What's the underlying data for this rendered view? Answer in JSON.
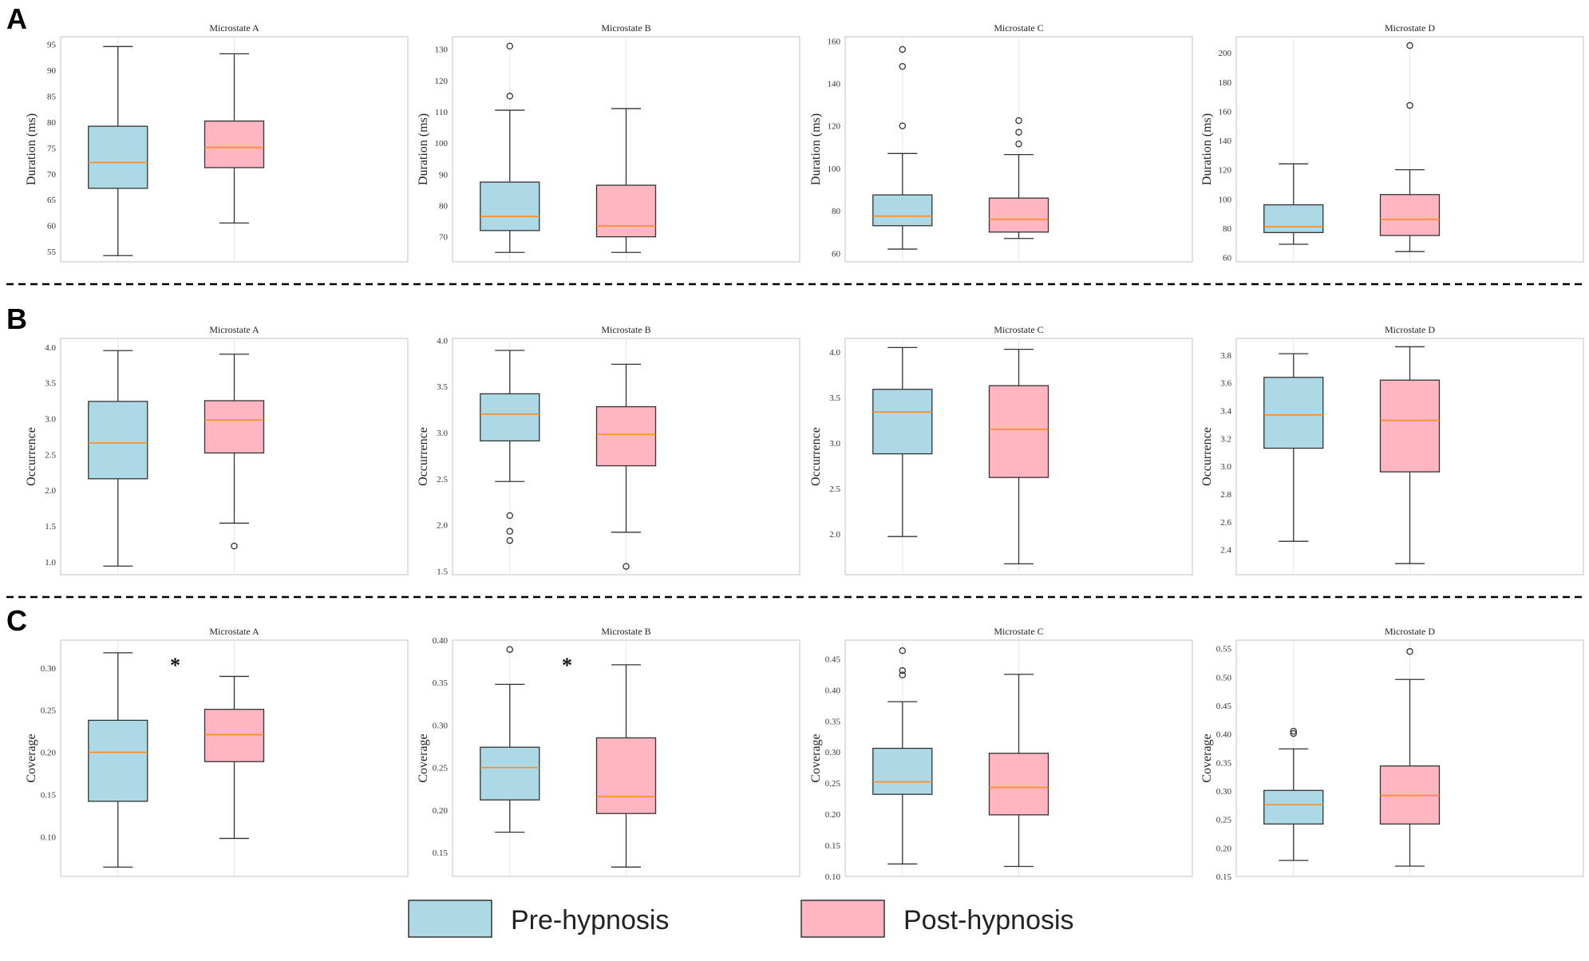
{
  "colors": {
    "pre_fill": "#add8e6",
    "post_fill": "#ffb6c1",
    "median": "#ff8c1a",
    "box_edge": "#333333",
    "frame": "#cccccc",
    "grid": "#e6e6e6",
    "separator": "#000000"
  },
  "legend": {
    "pre_label": "Pre-hypnosis",
    "post_label": "Post-hypnosis"
  },
  "chart_data": [
    {
      "type": "box",
      "row": "A",
      "col": 0,
      "title": "Microstate A",
      "ylabel": "Duration (ms)",
      "ylim": [
        53,
        96.5
      ],
      "yticks": [
        55,
        60,
        65,
        70,
        75,
        80,
        85,
        90,
        95
      ],
      "ytick_labels": [
        "55",
        "60",
        "65",
        "70",
        "75",
        "80",
        "85",
        "90",
        "95"
      ],
      "significance": "",
      "groups": [
        {
          "name": "Pre-hypnosis",
          "whisker_low": 54.2,
          "q1": 67.2,
          "median": 72.2,
          "q3": 79.2,
          "whisker_high": 94.6,
          "outliers": []
        },
        {
          "name": "Post-hypnosis",
          "whisker_low": 60.5,
          "q1": 71.2,
          "median": 75.1,
          "q3": 80.2,
          "whisker_high": 93.2,
          "outliers": []
        }
      ]
    },
    {
      "type": "box",
      "row": "A",
      "col": 1,
      "title": "Microstate B",
      "ylabel": "Duration (ms)",
      "ylim": [
        62,
        134
      ],
      "yticks": [
        70,
        80,
        90,
        100,
        110,
        120,
        130
      ],
      "ytick_labels": [
        "70",
        "80",
        "90",
        "100",
        "110",
        "120",
        "130"
      ],
      "significance": "",
      "groups": [
        {
          "name": "Pre-hypnosis",
          "whisker_low": 65,
          "q1": 72,
          "median": 76.5,
          "q3": 87.5,
          "whisker_high": 110.5,
          "outliers": [
            115,
            131
          ]
        },
        {
          "name": "Post-hypnosis",
          "whisker_low": 65,
          "q1": 70,
          "median": 73.5,
          "q3": 86.5,
          "whisker_high": 111,
          "outliers": []
        }
      ]
    },
    {
      "type": "box",
      "row": "A",
      "col": 2,
      "title": "Microstate C",
      "ylabel": "Duration (ms)",
      "ylim": [
        56,
        162
      ],
      "yticks": [
        60,
        80,
        100,
        120,
        140,
        160
      ],
      "ytick_labels": [
        "60",
        "80",
        "100",
        "120",
        "140",
        "160"
      ],
      "significance": "",
      "groups": [
        {
          "name": "Pre-hypnosis",
          "whisker_low": 62,
          "q1": 73,
          "median": 77.5,
          "q3": 87.5,
          "whisker_high": 107,
          "outliers": [
            120,
            148,
            156
          ]
        },
        {
          "name": "Post-hypnosis",
          "whisker_low": 67,
          "q1": 70,
          "median": 76,
          "q3": 86,
          "whisker_high": 106.5,
          "outliers": [
            111.5,
            117,
            122.5
          ]
        }
      ]
    },
    {
      "type": "box",
      "row": "A",
      "col": 3,
      "title": "Microstate D",
      "ylabel": "Duration (ms)",
      "ylim": [
        57,
        211
      ],
      "yticks": [
        60,
        80,
        100,
        120,
        140,
        160,
        180,
        200
      ],
      "ytick_labels": [
        "60",
        "80",
        "100",
        "120",
        "140",
        "160",
        "180",
        "200"
      ],
      "significance": "",
      "groups": [
        {
          "name": "Pre-hypnosis",
          "whisker_low": 69,
          "q1": 77,
          "median": 81,
          "q3": 96,
          "whisker_high": 124,
          "outliers": []
        },
        {
          "name": "Post-hypnosis",
          "whisker_low": 64,
          "q1": 75,
          "median": 86,
          "q3": 103,
          "whisker_high": 120,
          "outliers": [
            164,
            205
          ]
        }
      ]
    },
    {
      "type": "box",
      "row": "B",
      "col": 0,
      "title": "Microstate A",
      "ylabel": "Occurrence",
      "ylim": [
        0.82,
        4.12
      ],
      "yticks": [
        1.0,
        1.5,
        2.0,
        2.5,
        3.0,
        3.5,
        4.0
      ],
      "ytick_labels": [
        "1.0",
        "1.5",
        "2.0",
        "2.5",
        "3.0",
        "3.5",
        "4.0"
      ],
      "significance": "",
      "groups": [
        {
          "name": "Pre-hypnosis",
          "whisker_low": 0.94,
          "q1": 2.16,
          "median": 2.66,
          "q3": 3.24,
          "whisker_high": 3.95,
          "outliers": []
        },
        {
          "name": "Post-hypnosis",
          "whisker_low": 1.54,
          "q1": 2.52,
          "median": 2.98,
          "q3": 3.25,
          "whisker_high": 3.9,
          "outliers": [
            1.22
          ]
        }
      ]
    },
    {
      "type": "box",
      "row": "B",
      "col": 1,
      "title": "Microstate B",
      "ylabel": "Occurrence",
      "ylim": [
        1.46,
        4.02
      ],
      "yticks": [
        1.5,
        2.0,
        2.5,
        3.0,
        3.5,
        4.0
      ],
      "ytick_labels": [
        "1.5",
        "2.0",
        "2.5",
        "3.0",
        "3.5",
        "4.0"
      ],
      "significance": "",
      "groups": [
        {
          "name": "Pre-hypnosis",
          "whisker_low": 2.47,
          "q1": 2.91,
          "median": 3.2,
          "q3": 3.42,
          "whisker_high": 3.89,
          "outliers": [
            1.83,
            1.93,
            2.1
          ]
        },
        {
          "name": "Post-hypnosis",
          "whisker_low": 1.92,
          "q1": 2.64,
          "median": 2.98,
          "q3": 3.28,
          "whisker_high": 3.74,
          "outliers": [
            1.55
          ]
        }
      ]
    },
    {
      "type": "box",
      "row": "B",
      "col": 2,
      "title": "Microstate C",
      "ylabel": "Occurrence",
      "ylim": [
        1.55,
        4.15
      ],
      "yticks": [
        2.0,
        2.5,
        3.0,
        3.5,
        4.0
      ],
      "ytick_labels": [
        "2.0",
        "2.5",
        "3.0",
        "3.5",
        "4.0"
      ],
      "significance": "",
      "groups": [
        {
          "name": "Pre-hypnosis",
          "whisker_low": 1.97,
          "q1": 2.88,
          "median": 3.34,
          "q3": 3.59,
          "whisker_high": 4.05,
          "outliers": []
        },
        {
          "name": "Post-hypnosis",
          "whisker_low": 1.67,
          "q1": 2.62,
          "median": 3.15,
          "q3": 3.63,
          "whisker_high": 4.03,
          "outliers": []
        }
      ]
    },
    {
      "type": "box",
      "row": "B",
      "col": 3,
      "title": "Microstate D",
      "ylabel": "Occurrence",
      "ylim": [
        2.22,
        3.92
      ],
      "yticks": [
        2.4,
        2.6,
        2.8,
        3.0,
        3.2,
        3.4,
        3.6,
        3.8
      ],
      "ytick_labels": [
        "2.4",
        "2.6",
        "2.8",
        "3.0",
        "3.2",
        "3.4",
        "3.6",
        "3.8"
      ],
      "significance": "",
      "groups": [
        {
          "name": "Pre-hypnosis",
          "whisker_low": 2.46,
          "q1": 3.13,
          "median": 3.37,
          "q3": 3.64,
          "whisker_high": 3.81,
          "outliers": []
        },
        {
          "name": "Post-hypnosis",
          "whisker_low": 2.3,
          "q1": 2.96,
          "median": 3.33,
          "q3": 3.62,
          "whisker_high": 3.86,
          "outliers": []
        }
      ]
    },
    {
      "type": "box",
      "row": "C",
      "col": 0,
      "title": "Microstate A",
      "ylabel": "Coverage",
      "ylim": [
        0.053,
        0.333
      ],
      "yticks": [
        0.1,
        0.15,
        0.2,
        0.25,
        0.3
      ],
      "ytick_labels": [
        "0.10",
        "0.15",
        "0.20",
        "0.25",
        "0.30"
      ],
      "significance": "*",
      "groups": [
        {
          "name": "Pre-hypnosis",
          "whisker_low": 0.064,
          "q1": 0.142,
          "median": 0.2,
          "q3": 0.238,
          "whisker_high": 0.318,
          "outliers": []
        },
        {
          "name": "Post-hypnosis",
          "whisker_low": 0.098,
          "q1": 0.189,
          "median": 0.221,
          "q3": 0.251,
          "whisker_high": 0.29,
          "outliers": []
        }
      ]
    },
    {
      "type": "box",
      "row": "C",
      "col": 1,
      "title": "Microstate B",
      "ylabel": "Coverage",
      "ylim": [
        0.122,
        0.4
      ],
      "yticks": [
        0.15,
        0.2,
        0.25,
        0.3,
        0.35,
        0.4
      ],
      "ytick_labels": [
        "0.15",
        "0.20",
        "0.25",
        "0.30",
        "0.35",
        "0.40"
      ],
      "significance": "*",
      "groups": [
        {
          "name": "Pre-hypnosis",
          "whisker_low": 0.174,
          "q1": 0.212,
          "median": 0.25,
          "q3": 0.274,
          "whisker_high": 0.348,
          "outliers": [
            0.389
          ]
        },
        {
          "name": "Post-hypnosis",
          "whisker_low": 0.133,
          "q1": 0.196,
          "median": 0.216,
          "q3": 0.285,
          "whisker_high": 0.371,
          "outliers": []
        }
      ]
    },
    {
      "type": "box",
      "row": "C",
      "col": 2,
      "title": "Microstate C",
      "ylabel": "Coverage",
      "ylim": [
        0.1,
        0.48
      ],
      "yticks": [
        0.1,
        0.15,
        0.2,
        0.25,
        0.3,
        0.35,
        0.4,
        0.45
      ],
      "ytick_labels": [
        "0.10",
        "0.15",
        "0.20",
        "0.25",
        "0.30",
        "0.35",
        "0.40",
        "0.45"
      ],
      "significance": "",
      "groups": [
        {
          "name": "Pre-hypnosis",
          "whisker_low": 0.12,
          "q1": 0.232,
          "median": 0.252,
          "q3": 0.306,
          "whisker_high": 0.381,
          "outliers": [
            0.424,
            0.431,
            0.463
          ]
        },
        {
          "name": "Post-hypnosis",
          "whisker_low": 0.116,
          "q1": 0.199,
          "median": 0.243,
          "q3": 0.298,
          "whisker_high": 0.425,
          "outliers": []
        }
      ]
    },
    {
      "type": "box",
      "row": "C",
      "col": 3,
      "title": "Microstate D",
      "ylabel": "Coverage",
      "ylim": [
        0.15,
        0.565
      ],
      "yticks": [
        0.15,
        0.2,
        0.25,
        0.3,
        0.35,
        0.4,
        0.45,
        0.5,
        0.55
      ],
      "ytick_labels": [
        "0.15",
        "0.20",
        "0.25",
        "0.30",
        "0.35",
        "0.40",
        "0.45",
        "0.50",
        "0.55"
      ],
      "significance": "",
      "groups": [
        {
          "name": "Pre-hypnosis",
          "whisker_low": 0.178,
          "q1": 0.242,
          "median": 0.276,
          "q3": 0.301,
          "whisker_high": 0.374,
          "outliers": [
            0.401,
            0.405
          ]
        },
        {
          "name": "Post-hypnosis",
          "whisker_low": 0.168,
          "q1": 0.242,
          "median": 0.292,
          "q3": 0.344,
          "whisker_high": 0.496,
          "outliers": [
            0.545
          ]
        }
      ]
    }
  ]
}
